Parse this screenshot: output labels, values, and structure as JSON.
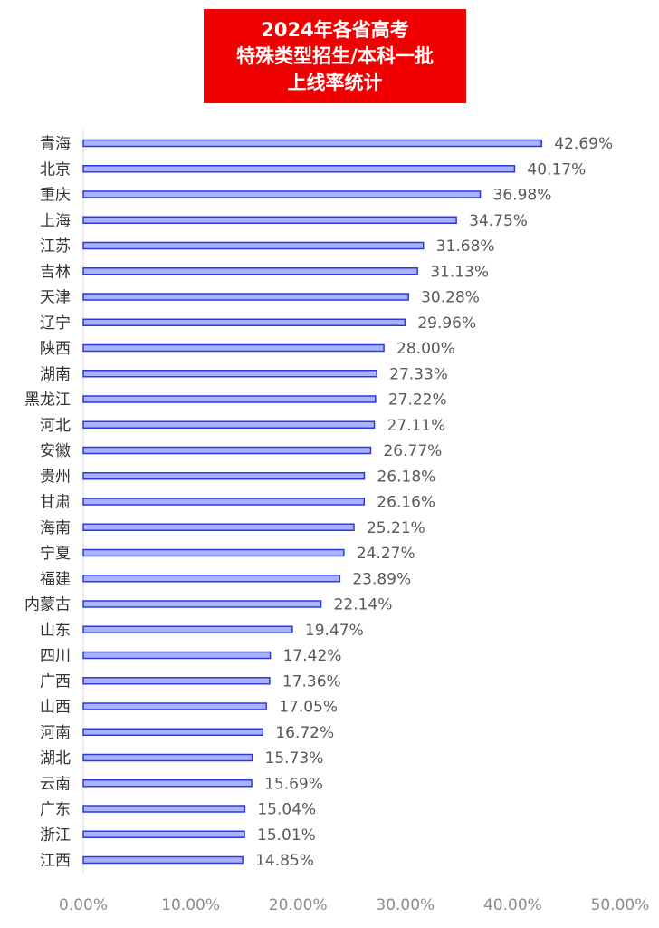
{
  "title_lines": [
    "2024年各省高考",
    "特殊类型招生/本科一批",
    "上线率统计"
  ],
  "colors": {
    "title_bg": "#f00000",
    "bar_fill": "#a9b3ff",
    "bar_stroke": "#2f3ad8"
  },
  "chart_data": {
    "type": "bar",
    "orientation": "horizontal",
    "title": "2024年各省高考特殊类型招生/本科一批上线率统计",
    "categories": [
      "青海",
      "北京",
      "重庆",
      "上海",
      "江苏",
      "吉林",
      "天津",
      "辽宁",
      "陕西",
      "湖南",
      "黑龙江",
      "河北",
      "安徽",
      "贵州",
      "甘肃",
      "海南",
      "宁夏",
      "福建",
      "内蒙古",
      "山东",
      "四川",
      "广西",
      "山西",
      "河南",
      "湖北",
      "云南",
      "广东",
      "浙江",
      "江西"
    ],
    "values": [
      42.69,
      40.17,
      36.98,
      34.75,
      31.68,
      31.13,
      30.28,
      29.96,
      28.0,
      27.33,
      27.22,
      27.11,
      26.77,
      26.18,
      26.16,
      25.21,
      24.27,
      23.89,
      22.14,
      19.47,
      17.42,
      17.36,
      17.05,
      16.72,
      15.73,
      15.69,
      15.04,
      15.01,
      14.85
    ],
    "value_labels": [
      "42.69%",
      "40.17%",
      "36.98%",
      "34.75%",
      "31.68%",
      "31.13%",
      "30.28%",
      "29.96%",
      "28.00%",
      "27.33%",
      "27.22%",
      "27.11%",
      "26.77%",
      "26.18%",
      "26.16%",
      "25.21%",
      "24.27%",
      "23.89%",
      "22.14%",
      "19.47%",
      "17.42%",
      "17.36%",
      "17.05%",
      "16.72%",
      "15.73%",
      "15.69%",
      "15.04%",
      "15.01%",
      "14.85%"
    ],
    "xlim": [
      0,
      50
    ],
    "x_ticks": [
      "0.00%",
      "10.00%",
      "20.00%",
      "30.00%",
      "40.00%",
      "50.00%"
    ],
    "grid": false,
    "legend": "none"
  }
}
